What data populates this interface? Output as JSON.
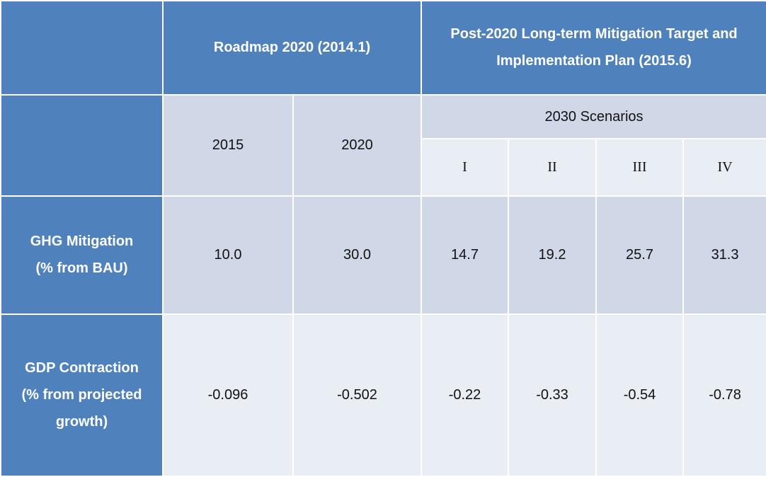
{
  "table": {
    "header": {
      "corner": "",
      "roadmap": "Roadmap 2020 (2014.1)",
      "post2020_line1": "Post-2020 Long-term Mitigation Target and",
      "post2020_line2": "Implementation Plan (2015.6)"
    },
    "subheader": {
      "corner": "",
      "year_2015": "2015",
      "year_2020": "2020",
      "scenarios_label": "2030 Scenarios",
      "scenarios": [
        "I",
        "II",
        "III",
        "IV"
      ]
    },
    "rows": [
      {
        "label_line1": "GHG Mitigation",
        "label_line2": "(% from BAU)",
        "label_line3": "",
        "values": [
          "10.0",
          "30.0",
          "14.7",
          "19.2",
          "25.7",
          "31.3"
        ]
      },
      {
        "label_line1": "GDP Contraction",
        "label_line2": "(% from projected",
        "label_line3": "growth)",
        "values": [
          "-0.096",
          "-0.502",
          "-0.22",
          "-0.33",
          "-0.54",
          "-0.78"
        ]
      }
    ]
  },
  "colors": {
    "header_blue": "#4f81bd",
    "band_dark": "#d0d8e8",
    "band_light": "#e9edf4"
  }
}
